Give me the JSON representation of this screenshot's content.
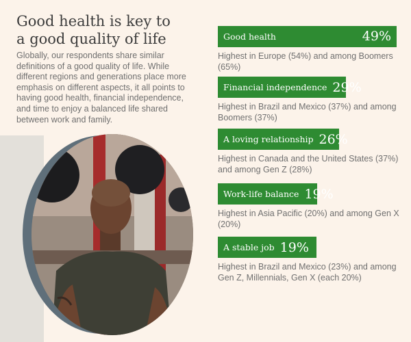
{
  "header": {
    "title_line1": "Good health is key to",
    "title_line2": "a good quality of life",
    "intro": "Globally, our respondents share similar definitions of a good quality of life. While different regions and generations place more emphasis on different aspects, it all points to having good health, financial independence, and time to enjoy a balanced life shared between work and family."
  },
  "chart_data": {
    "type": "bar",
    "categories": [
      "Good health",
      "Financial independence",
      "A loving relationship",
      "Work-life balance",
      "A stable job"
    ],
    "values": [
      49,
      29,
      26,
      19,
      19
    ],
    "value_labels": [
      "49%",
      "29%",
      "26%",
      "19%",
      "19%"
    ],
    "unit": "%",
    "descriptions": [
      "Highest in Europe (54%) and among Boomers (65%)",
      "Highest in Brazil and Mexico (37%) and among Boomers (37%)",
      "Highest in Canada and the United States (37%) and among Gen Z (28%)",
      "Highest in Asia Pacific (20%) and among Gen X (20%)",
      "Highest in Brazil and Mexico (23%) and among Gen Z, Millennials, Gen X (each 20%)"
    ],
    "bar_color": "#2e8b32"
  },
  "colors": {
    "background": "#fcf3ea",
    "accent": "#2e8b32",
    "photo_ring": "#5f6f7a"
  }
}
